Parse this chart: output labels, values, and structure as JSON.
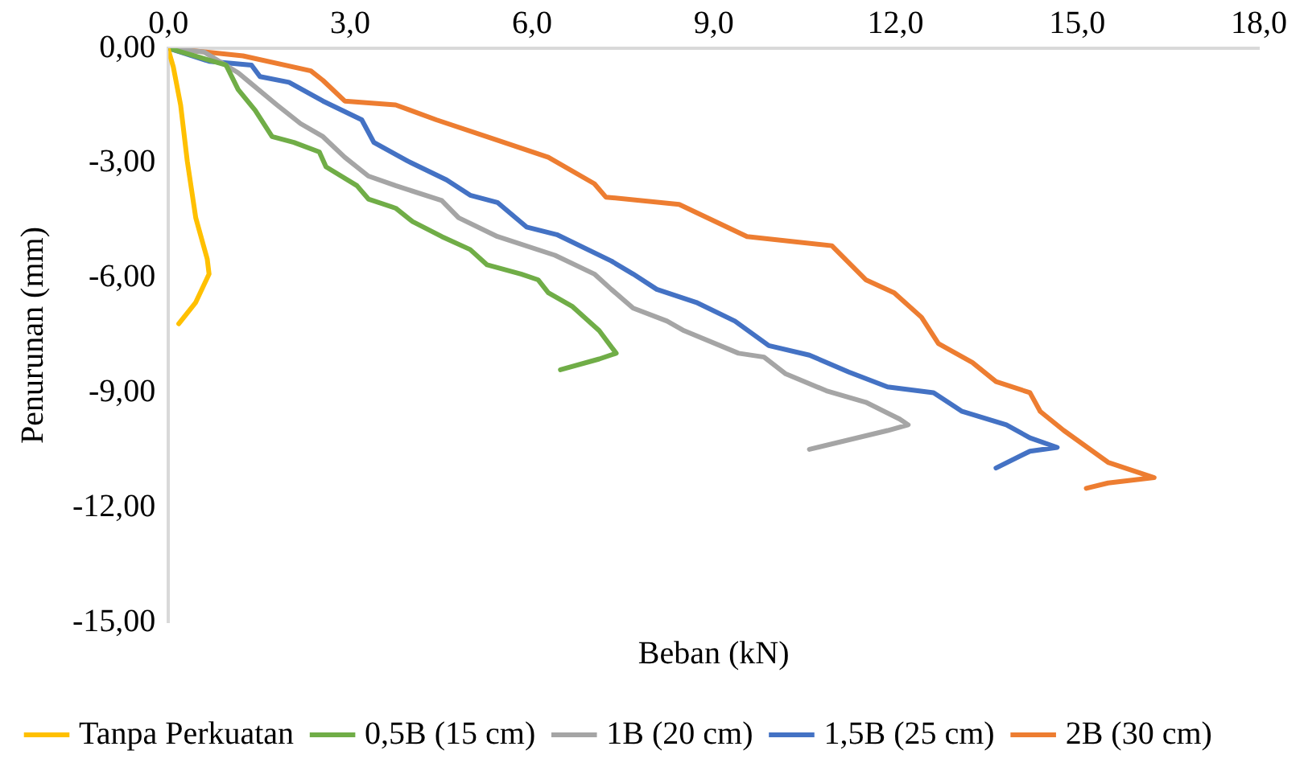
{
  "chart_data": {
    "type": "line",
    "xlabel": "Beban (kN)",
    "ylabel": "Penurunan (mm)",
    "xlim": [
      0,
      18
    ],
    "xticks": [
      {
        "value": 0,
        "label": "0,0"
      },
      {
        "value": 3,
        "label": "3,0"
      },
      {
        "value": 6,
        "label": "6,0"
      },
      {
        "value": 9,
        "label": "9,0"
      },
      {
        "value": 12,
        "label": "12,0"
      },
      {
        "value": 15,
        "label": "15,0"
      },
      {
        "value": 18,
        "label": "18,0"
      }
    ],
    "ylim": [
      -15,
      0
    ],
    "yticks": [
      {
        "value": 0,
        "label": "0,00"
      },
      {
        "value": -3,
        "label": "-3,00"
      },
      {
        "value": -6,
        "label": "-6,00"
      },
      {
        "value": -9,
        "label": "-9,00"
      },
      {
        "value": -12,
        "label": "-12,00"
      },
      {
        "value": -15,
        "label": "-15,00"
      }
    ],
    "grid": false,
    "legend": "bottom",
    "marker": "none",
    "line_style": "solid",
    "series": [
      {
        "name": "Tanpa Perkuatan",
        "color": "#ffc000",
        "x": [
          0,
          0.08,
          0.2,
          0.31,
          0.45,
          0.64,
          0.67,
          0.45,
          0.17
        ],
        "values": [
          -0.05,
          -0.49,
          -1.48,
          -2.95,
          -4.43,
          -5.51,
          -5.9,
          -6.64,
          -7.2
        ]
      },
      {
        "name": "0,5B (15 cm)",
        "color": "#70ad47",
        "x": [
          0,
          0.95,
          1.15,
          1.43,
          1.71,
          2.07,
          2.49,
          2.6,
          3.11,
          3.3,
          3.75,
          4.03,
          4.51,
          4.98,
          5.26,
          5.82,
          6.1,
          6.27,
          6.66,
          7.11,
          7.39,
          7.11,
          6.47
        ],
        "values": [
          0,
          -0.44,
          -1.08,
          -1.62,
          -2.31,
          -2.46,
          -2.71,
          -3.1,
          -3.59,
          -3.94,
          -4.18,
          -4.53,
          -4.92,
          -5.26,
          -5.66,
          -5.9,
          -6.05,
          -6.39,
          -6.74,
          -7.38,
          -7.97,
          -8.12,
          -8.4
        ]
      },
      {
        "name": "1B (20 cm)",
        "color": "#a5a5a5",
        "x": [
          0,
          0.59,
          1.15,
          1.34,
          1.79,
          2.18,
          2.55,
          2.91,
          3.3,
          3.75,
          4.51,
          4.79,
          5.43,
          6.38,
          7.03,
          7.31,
          7.67,
          8.23,
          8.51,
          9.41,
          9.83,
          10.19,
          10.86,
          11.51,
          12.07,
          12.21,
          11.87,
          10.58
        ],
        "values": [
          0,
          -0.1,
          -0.64,
          -0.89,
          -1.48,
          -1.97,
          -2.31,
          -2.85,
          -3.34,
          -3.59,
          -3.98,
          -4.43,
          -4.92,
          -5.41,
          -5.9,
          -6.3,
          -6.79,
          -7.13,
          -7.38,
          -7.97,
          -8.07,
          -8.51,
          -8.95,
          -9.25,
          -9.69,
          -9.84,
          -9.99,
          -10.48
        ]
      },
      {
        "name": "1,5B (25 cm)",
        "color": "#4472c4",
        "x": [
          0,
          0.67,
          1.37,
          1.51,
          1.99,
          2.55,
          3.19,
          3.39,
          3.95,
          4.59,
          4.98,
          5.43,
          5.91,
          6.41,
          7.31,
          7.67,
          8.06,
          8.71,
          9.35,
          9.91,
          10.58,
          11.23,
          11.87,
          12.63,
          13.1,
          13.83,
          14.22,
          14.67,
          14.22,
          13.66
        ],
        "values": [
          0,
          -0.34,
          -0.44,
          -0.74,
          -0.89,
          -1.38,
          -1.87,
          -2.46,
          -2.95,
          -3.44,
          -3.84,
          -4.03,
          -4.67,
          -4.87,
          -5.56,
          -5.9,
          -6.3,
          -6.64,
          -7.13,
          -7.77,
          -8.02,
          -8.46,
          -8.85,
          -9.0,
          -9.49,
          -9.84,
          -10.18,
          -10.43,
          -10.53,
          -10.97
        ]
      },
      {
        "name": "2B (30 cm)",
        "color": "#ed7d31",
        "x": [
          0,
          1.23,
          2.35,
          2.55,
          2.91,
          3.75,
          4.42,
          5.35,
          6.27,
          7.03,
          7.22,
          8.43,
          9.55,
          10.95,
          11.51,
          11.98,
          12.43,
          12.71,
          13.27,
          13.66,
          14.22,
          14.39,
          14.78,
          15.51,
          16.27,
          15.51,
          15.15
        ],
        "values": [
          0,
          -0.2,
          -0.59,
          -0.84,
          -1.38,
          -1.48,
          -1.87,
          -2.36,
          -2.85,
          -3.54,
          -3.89,
          -4.08,
          -4.92,
          -5.16,
          -6.05,
          -6.39,
          -7.03,
          -7.72,
          -8.21,
          -8.71,
          -9.0,
          -9.49,
          -9.99,
          -10.82,
          -11.22,
          -11.36,
          -11.5
        ]
      }
    ]
  }
}
